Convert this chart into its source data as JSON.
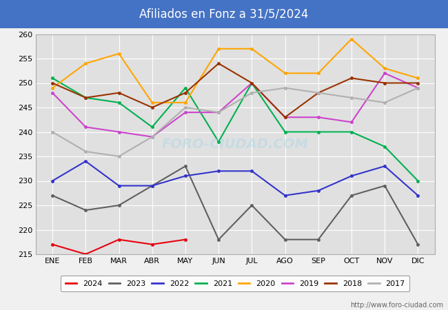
{
  "title": "Afiliados en Fonz a 31/5/2024",
  "title_color": "white",
  "header_color": "#4472c4",
  "background_color": "#f0f0f0",
  "plot_bg_color": "#e0e0e0",
  "ylim": [
    215,
    260
  ],
  "yticks": [
    215,
    220,
    225,
    230,
    235,
    240,
    245,
    250,
    255,
    260
  ],
  "months": [
    "ENE",
    "FEB",
    "MAR",
    "ABR",
    "MAY",
    "JUN",
    "JUL",
    "AGO",
    "SEP",
    "OCT",
    "NOV",
    "DIC"
  ],
  "watermark": "FORO-CIUDAD.COM",
  "url": "http://www.foro-ciudad.com",
  "series": [
    {
      "label": "2024",
      "color": "#e8000d",
      "data": [
        217,
        215,
        218,
        217,
        218,
        null,
        null,
        null,
        null,
        null,
        null,
        null
      ]
    },
    {
      "label": "2023",
      "color": "#606060",
      "data": [
        227,
        224,
        225,
        229,
        233,
        218,
        225,
        218,
        218,
        227,
        229,
        217
      ]
    },
    {
      "label": "2022",
      "color": "#3333cc",
      "data": [
        230,
        234,
        229,
        229,
        231,
        232,
        232,
        227,
        228,
        231,
        233,
        227
      ]
    },
    {
      "label": "2021",
      "color": "#00b050",
      "data": [
        251,
        247,
        246,
        241,
        249,
        238,
        250,
        240,
        240,
        240,
        237,
        230
      ]
    },
    {
      "label": "2020",
      "color": "#ffa500",
      "data": [
        249,
        254,
        256,
        246,
        246,
        257,
        257,
        252,
        252,
        259,
        253,
        251
      ]
    },
    {
      "label": "2019",
      "color": "#cc44cc",
      "data": [
        248,
        241,
        240,
        239,
        244,
        244,
        250,
        243,
        243,
        242,
        252,
        249
      ]
    },
    {
      "label": "2018",
      "color": "#993300",
      "data": [
        250,
        247,
        248,
        245,
        248,
        254,
        250,
        243,
        248,
        251,
        250,
        250
      ]
    },
    {
      "label": "2017",
      "color": "#b0b0b0",
      "data": [
        240,
        236,
        235,
        239,
        245,
        244,
        248,
        249,
        248,
        247,
        246,
        249
      ]
    }
  ]
}
